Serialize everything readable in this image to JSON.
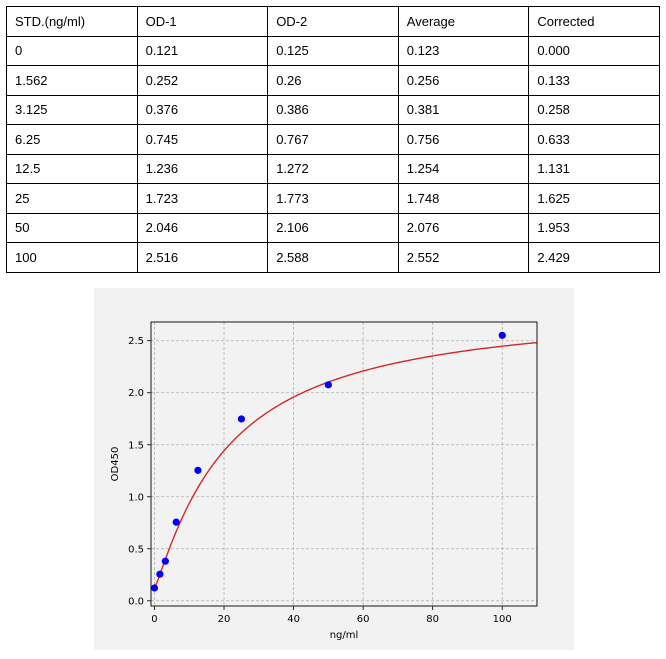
{
  "table": {
    "headers": [
      "STD.(ng/ml)",
      "OD-1",
      "OD-2",
      "Average",
      "Corrected"
    ],
    "rows": [
      [
        "0",
        "0.121",
        "0.125",
        "0.123",
        "0.000"
      ],
      [
        "1.562",
        "0.252",
        "0.26",
        "0.256",
        "0.133"
      ],
      [
        "3.125",
        "0.376",
        "0.386",
        "0.381",
        "0.258"
      ],
      [
        "6.25",
        "0.745",
        "0.767",
        "0.756",
        "0.633"
      ],
      [
        "12.5",
        "1.236",
        "1.272",
        "1.254",
        "1.131"
      ],
      [
        "25",
        "1.723",
        "1.773",
        "1.748",
        "1.625"
      ],
      [
        "50",
        "2.046",
        "2.106",
        "2.076",
        "1.953"
      ],
      [
        "100",
        "2.516",
        "2.588",
        "2.552",
        "2.429"
      ]
    ]
  },
  "chart_data": {
    "type": "scatter",
    "title": "",
    "xlabel": "ng/ml",
    "ylabel": "OD450",
    "xlim": [
      -1,
      110
    ],
    "ylim": [
      -0.05,
      2.68
    ],
    "xticks": [
      0,
      20,
      40,
      60,
      80,
      100
    ],
    "xtick_labels": [
      "0",
      "20",
      "40",
      "60",
      "80",
      "100"
    ],
    "yticks": [
      0,
      0.5,
      1.0,
      1.5,
      2.0,
      2.5
    ],
    "ytick_labels": [
      "0.0",
      "0.5",
      "1.0",
      "1.5",
      "2.0",
      "2.5"
    ],
    "grid": true,
    "points": {
      "x": [
        0,
        1.562,
        3.125,
        6.25,
        12.5,
        25,
        50,
        100
      ],
      "y": [
        0.123,
        0.256,
        0.381,
        0.756,
        1.254,
        1.748,
        2.076,
        2.552
      ],
      "color": "#0000ff"
    },
    "fit_curve": {
      "model": "four-parameter logistic",
      "a": 0.12,
      "b": 1.14,
      "c": 21.0,
      "d": 2.84,
      "color": "#d62728"
    }
  }
}
